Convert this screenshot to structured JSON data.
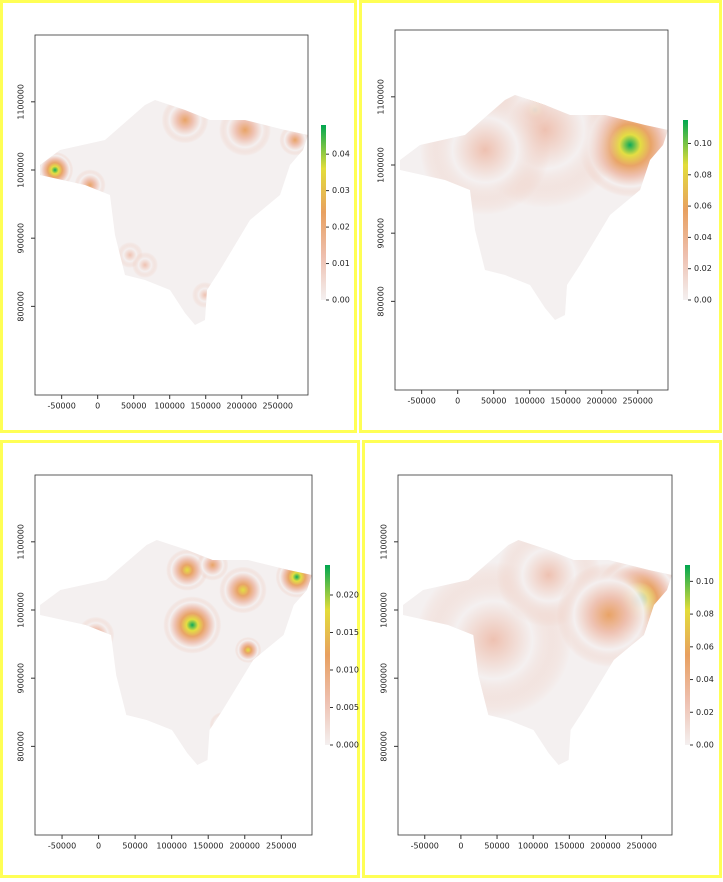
{
  "chart_data": [
    {
      "type": "raster",
      "xlim": [
        -87000,
        292000
      ],
      "xticks": [
        -50000,
        0,
        50000,
        100000,
        150000,
        200000,
        250000
      ],
      "ylim": [
        670000,
        1198000
      ],
      "yticks": [
        800000,
        900000,
        1000000,
        1100000
      ],
      "clim": [
        0,
        0.048
      ],
      "cticks": [
        {
          "value": 0,
          "label": "0.00"
        },
        0.01,
        0.02,
        0.03,
        0.04
      ],
      "colormap": [
        "#f4f0f0",
        "#eebfae",
        "#e8a060",
        "#e3dd3a",
        "#00a650"
      ]
    },
    {
      "type": "raster",
      "xlim": [
        -87000,
        292000
      ],
      "xticks": [
        -50000,
        0,
        50000,
        100000,
        150000,
        200000,
        250000
      ],
      "ylim": [
        670000,
        1198000
      ],
      "yticks": [
        800000,
        900000,
        1000000,
        1100000
      ],
      "clim": [
        0,
        0.115
      ],
      "cticks": [
        {
          "value": 0,
          "label": "0.00"
        },
        0.02,
        0.04,
        0.06,
        0.08,
        {
          "value": 0.1,
          "label": "0.10"
        }
      ],
      "colormap": [
        "#f4f0f0",
        "#eebfae",
        "#e8a060",
        "#e3dd3a",
        "#00a650"
      ]
    },
    {
      "type": "raster",
      "xlim": [
        -87000,
        292000
      ],
      "xticks": [
        -50000,
        0,
        50000,
        100000,
        150000,
        200000,
        250000
      ],
      "ylim": [
        670000,
        1198000
      ],
      "yticks": [
        800000,
        900000,
        1000000,
        1100000
      ],
      "clim": [
        0,
        0.024
      ],
      "cticks": [
        {
          "value": 0,
          "label": "0.000"
        },
        0.005,
        {
          "value": 0.01,
          "label": "0.010"
        },
        0.015,
        {
          "value": 0.02,
          "label": "0.020"
        }
      ],
      "colormap": [
        "#f4f0f0",
        "#eebfae",
        "#e8a060",
        "#e3dd3a",
        "#00a650"
      ]
    },
    {
      "type": "raster",
      "xlim": [
        -87000,
        292000
      ],
      "xticks": [
        -50000,
        0,
        50000,
        100000,
        150000,
        200000,
        250000
      ],
      "ylim": [
        670000,
        1198000
      ],
      "yticks": [
        800000,
        900000,
        1000000,
        1100000
      ],
      "clim": [
        0,
        0.11
      ],
      "cticks": [
        {
          "value": 0,
          "label": "0.00"
        },
        0.02,
        0.04,
        0.06,
        0.08,
        {
          "value": 0.1,
          "label": "0.10"
        }
      ],
      "colormap": [
        "#f4f0f0",
        "#eebfae",
        "#e8a060",
        "#e3dd3a",
        "#00a650"
      ]
    }
  ]
}
